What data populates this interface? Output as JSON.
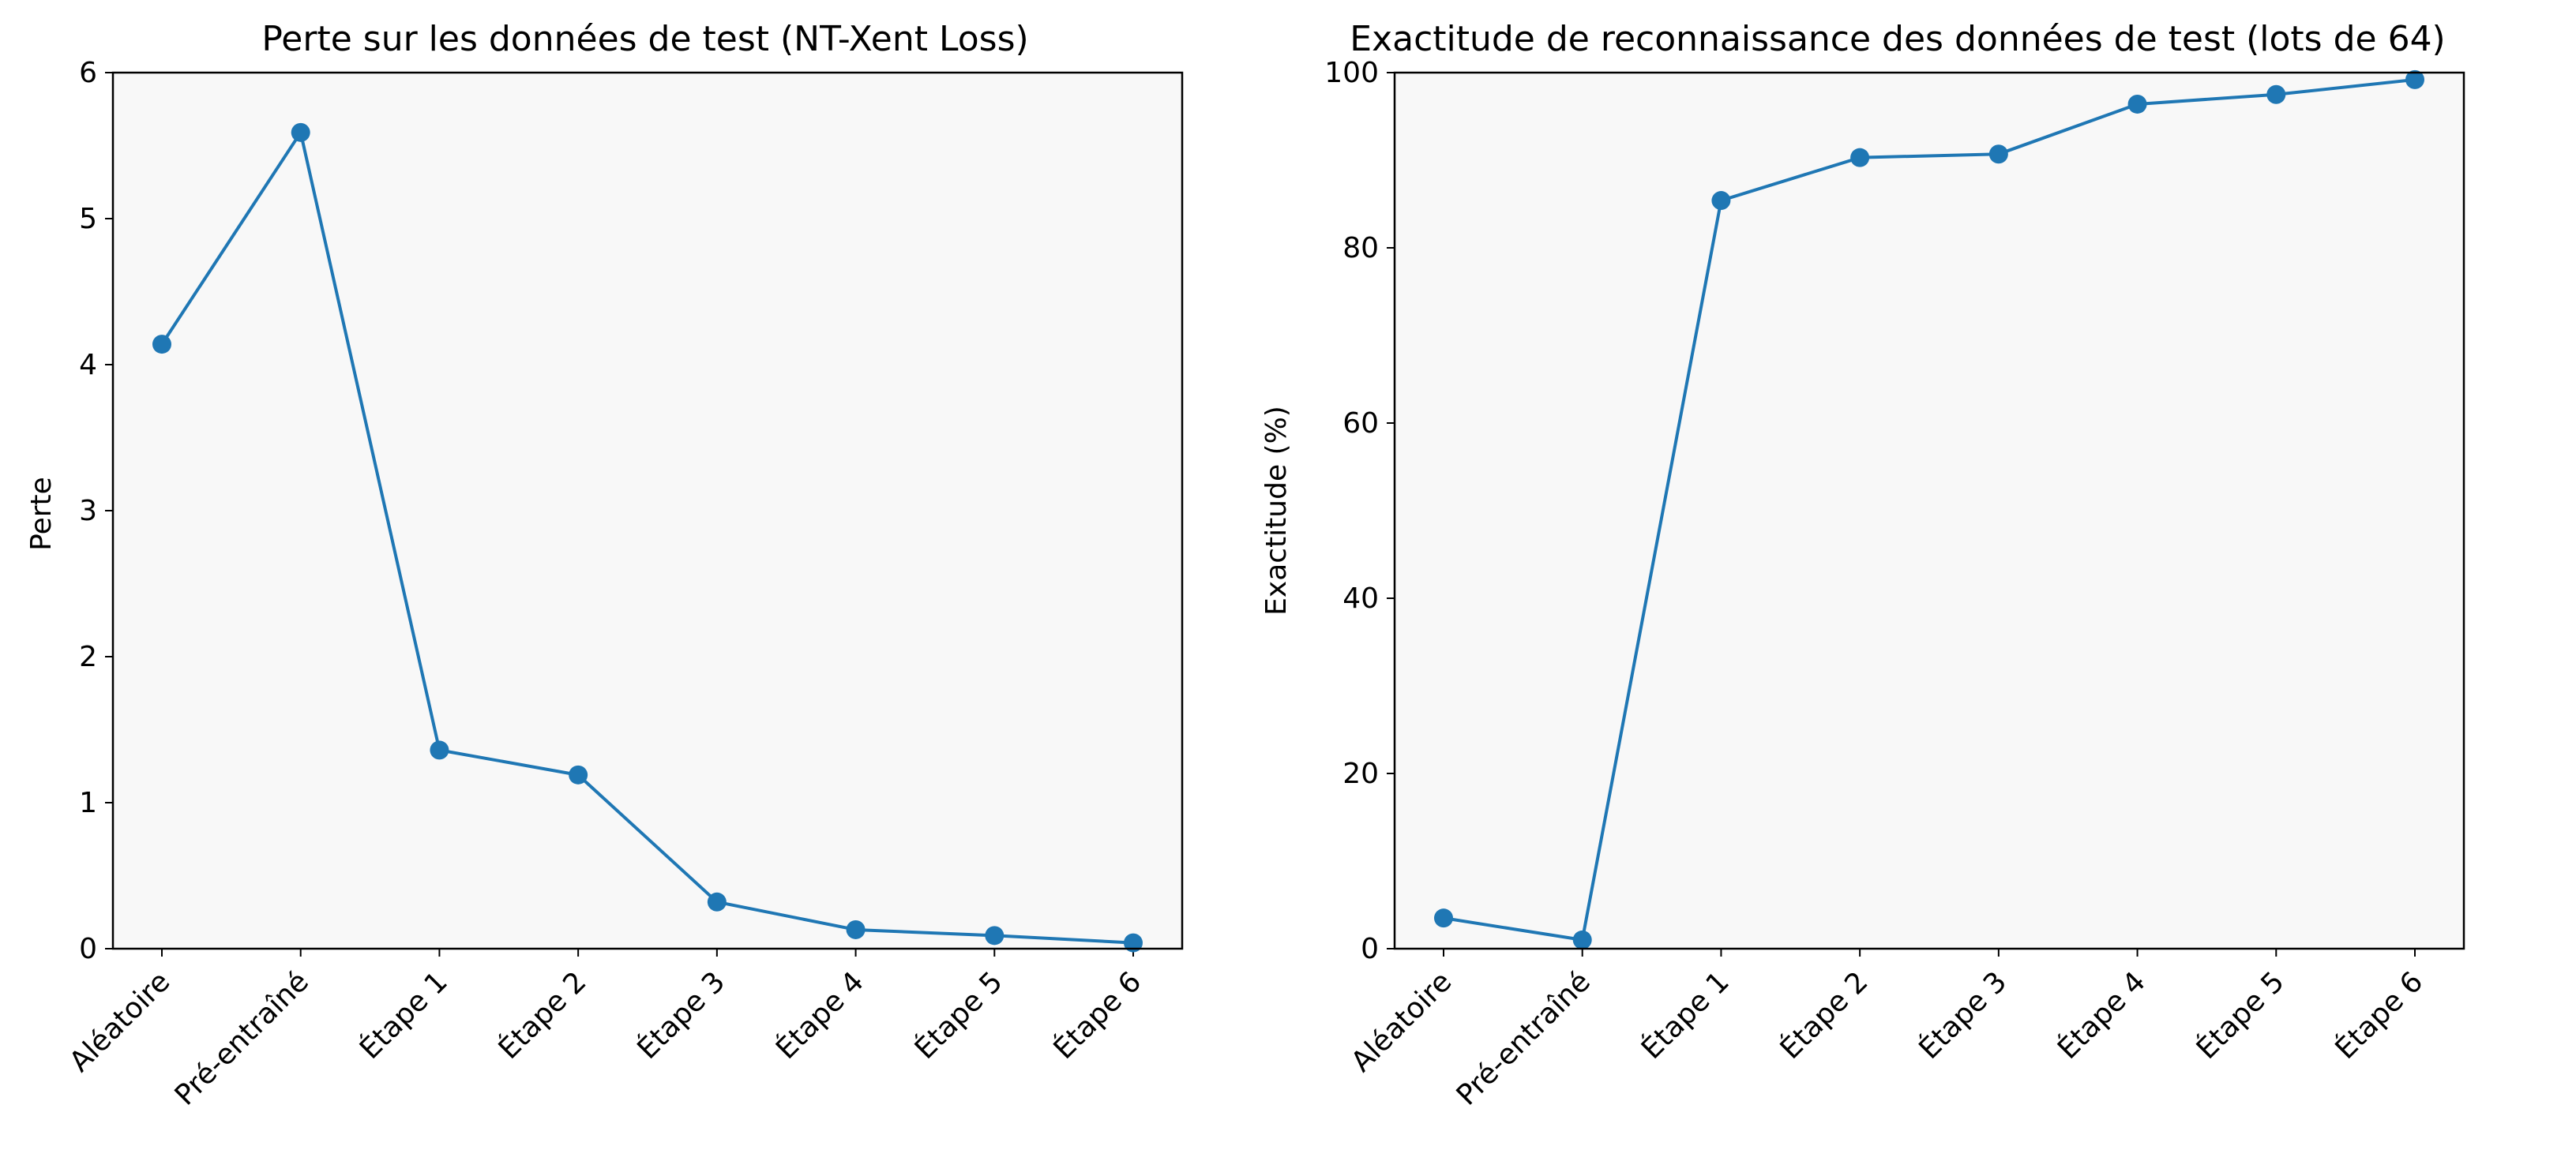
{
  "chart_data": [
    {
      "type": "line",
      "title": "Perte sur les données de test (NT-Xent Loss)",
      "xlabel": "",
      "ylabel": "Perte",
      "categories": [
        "Aléatoire",
        "Pré-entraîné",
        "Étape 1",
        "Étape 2",
        "Étape 3",
        "Étape 4",
        "Étape 5",
        "Étape 6"
      ],
      "series": [
        {
          "values": [
            4.14,
            5.59,
            1.36,
            1.19,
            0.32,
            0.13,
            0.09,
            0.04
          ]
        }
      ],
      "ylim": [
        0,
        6
      ],
      "yticks": [
        "0",
        "1",
        "2",
        "3",
        "4",
        "5",
        "6"
      ],
      "marker": "circle",
      "grid": false,
      "legend": "none",
      "colors": {
        "line": "#1f77b4",
        "plot_bg": "#f8f8f8",
        "frame": "#000000"
      }
    },
    {
      "type": "line",
      "title": "Exactitude de reconnaissance des données de test (lots de 64)",
      "xlabel": "",
      "ylabel": "Exactitude (%)",
      "categories": [
        "Aléatoire",
        "Pré-entraîné",
        "Étape 1",
        "Étape 2",
        "Étape 3",
        "Étape 4",
        "Étape 5",
        "Étape 6"
      ],
      "series": [
        {
          "values": [
            3.5,
            1.0,
            85.4,
            90.3,
            90.7,
            96.4,
            97.5,
            99.2
          ]
        }
      ],
      "ylim": [
        0,
        100
      ],
      "yticks": [
        "0",
        "20",
        "40",
        "60",
        "80",
        "100"
      ],
      "marker": "circle",
      "grid": false,
      "legend": "none",
      "colors": {
        "line": "#1f77b4",
        "plot_bg": "#f8f8f8",
        "frame": "#000000"
      }
    }
  ]
}
